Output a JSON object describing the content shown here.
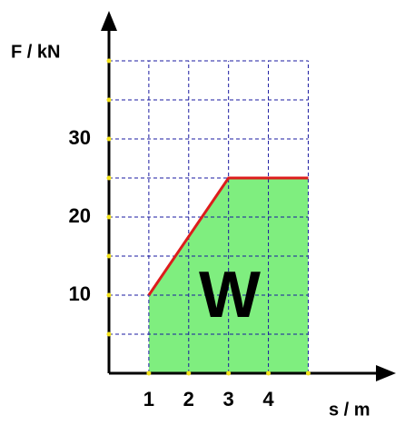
{
  "chart_data": {
    "type": "area",
    "x_label": "s / m",
    "y_label": "F / kN",
    "annotation": "W",
    "x": [
      1,
      3,
      5
    ],
    "values": [
      10,
      25,
      25
    ],
    "color": "#dd1c1c",
    "fill": "#7fee7f",
    "xlim": [
      0,
      7.2
    ],
    "ylim": [
      0,
      46.4
    ],
    "xticks": [
      1,
      2,
      3,
      4
    ],
    "yticks": [
      10,
      20,
      30
    ],
    "xgrid": [
      1,
      2,
      3,
      4,
      5
    ],
    "ygrid": [
      5,
      10,
      15,
      20,
      25,
      30,
      35,
      40
    ],
    "grid": true
  }
}
